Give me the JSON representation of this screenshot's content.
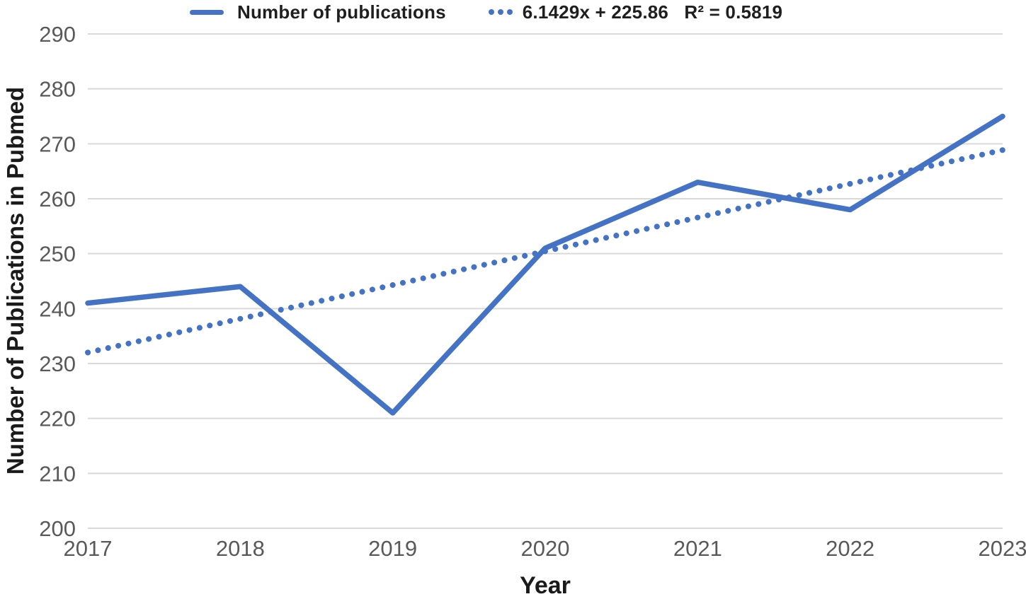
{
  "chart_data": {
    "type": "line",
    "title": "",
    "xlabel": "Year",
    "ylabel": "Number of Publications in Pubmed",
    "categories": [
      "2017",
      "2018",
      "2019",
      "2020",
      "2021",
      "2022",
      "2023"
    ],
    "series": [
      {
        "name": "Number of publications",
        "style": "solid",
        "values": [
          241,
          244,
          221,
          251,
          263,
          258,
          275
        ]
      },
      {
        "name": "6.1429x + 225.86   R² = 0.5819",
        "style": "dotted",
        "trend": {
          "slope": 6.1429,
          "intercept": 225.86,
          "r_squared": 0.5819
        },
        "values": [
          232.0,
          238.15,
          244.29,
          250.43,
          256.57,
          262.72,
          268.86
        ]
      }
    ],
    "ylim": [
      200,
      290
    ],
    "y_tick_step": 10,
    "y_tick_labels": [
      "200",
      "210",
      "220",
      "230",
      "240",
      "250",
      "260",
      "270",
      "280",
      "290"
    ],
    "grid": true,
    "legend_position": "top",
    "colors": {
      "line": "#4472C4",
      "gridline": "#D9D9D9",
      "tick_label": "#595959",
      "title_text": "#1a1a1a"
    }
  },
  "legend": {
    "series1_label": "Number of publications",
    "series2_label": "6.1429x + 225.86   R² = 0.5819"
  },
  "axes": {
    "x_title": "Year",
    "y_title": "Number of Publications in Pubmed"
  }
}
